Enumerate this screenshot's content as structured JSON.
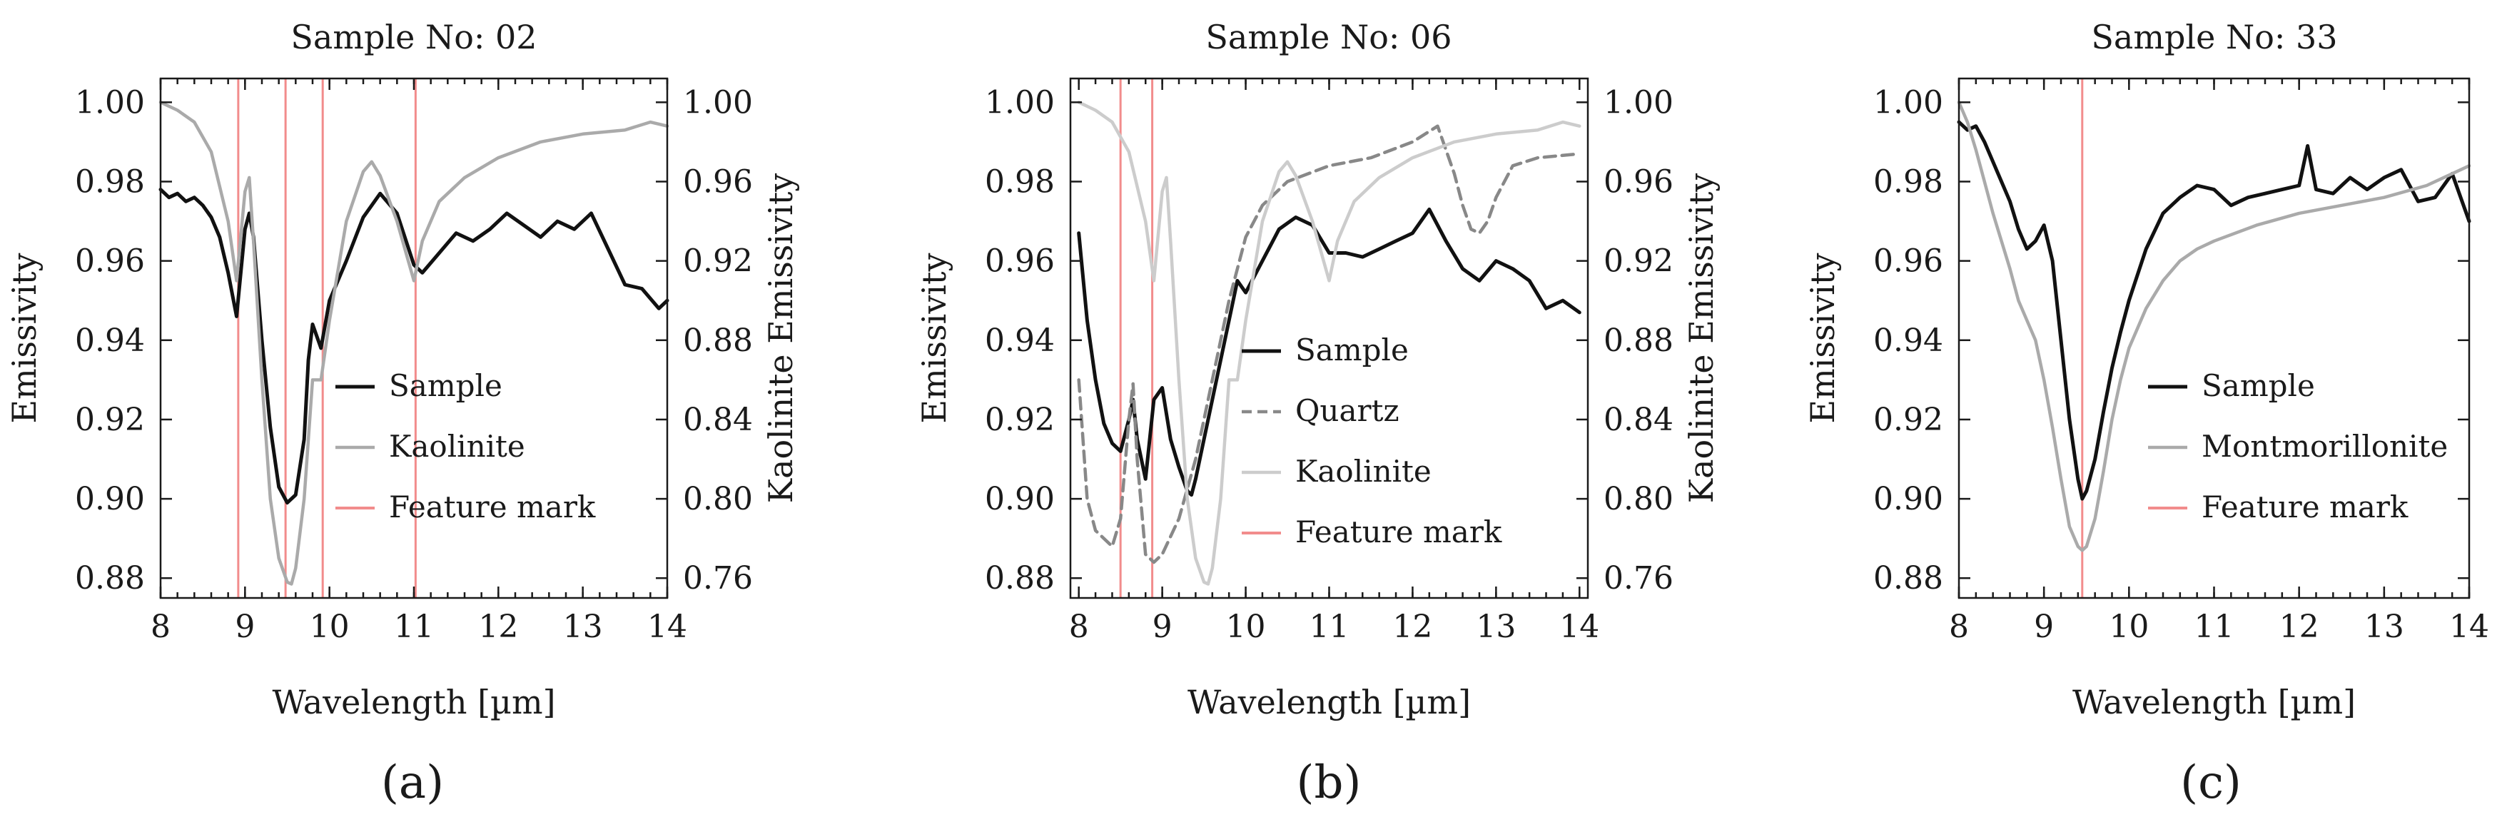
{
  "chart_data": [
    {
      "type": "line",
      "panel_label": "(a)",
      "title": "Sample No: 02",
      "xlabel": "Wavelength [µm]",
      "ylabel": "Emissivity",
      "y2label": "Kaolinite Emissivity",
      "xlim": [
        8,
        14
      ],
      "ylim": [
        0.875,
        1.006
      ],
      "y2lim": [
        0.75,
        1.012
      ],
      "xticks": [
        "8",
        "9",
        "10",
        "11",
        "12",
        "13",
        "14"
      ],
      "yticks": [
        "0.88",
        "0.90",
        "0.92",
        "0.94",
        "0.96",
        "0.98",
        "1.00"
      ],
      "y2ticks": [
        "0.76",
        "0.80",
        "0.84",
        "0.88",
        "0.92",
        "0.96",
        "1.00"
      ],
      "legend_position": "center-right",
      "series": [
        {
          "name": "Sample",
          "color": "#111111",
          "dash": "solid",
          "axis": "left",
          "x": [
            8.0,
            8.1,
            8.2,
            8.3,
            8.4,
            8.5,
            8.6,
            8.7,
            8.8,
            8.9,
            9.0,
            9.05,
            9.1,
            9.2,
            9.3,
            9.4,
            9.5,
            9.6,
            9.7,
            9.75,
            9.8,
            9.9,
            10.0,
            10.2,
            10.4,
            10.6,
            10.8,
            11.0,
            11.1,
            11.3,
            11.5,
            11.7,
            11.9,
            12.1,
            12.3,
            12.5,
            12.7,
            12.9,
            13.1,
            13.3,
            13.5,
            13.7,
            13.9,
            14.0
          ],
          "values": [
            0.978,
            0.976,
            0.977,
            0.975,
            0.976,
            0.974,
            0.971,
            0.966,
            0.957,
            0.946,
            0.968,
            0.972,
            0.966,
            0.94,
            0.918,
            0.903,
            0.899,
            0.901,
            0.915,
            0.935,
            0.944,
            0.938,
            0.95,
            0.96,
            0.971,
            0.977,
            0.972,
            0.959,
            0.957,
            0.962,
            0.967,
            0.965,
            0.968,
            0.972,
            0.969,
            0.966,
            0.97,
            0.968,
            0.972,
            0.963,
            0.954,
            0.953,
            0.948,
            0.95
          ]
        },
        {
          "name": "Kaolinite",
          "color": "#aaaaaa",
          "dash": "solid",
          "axis": "right",
          "x": [
            8.0,
            8.2,
            8.4,
            8.6,
            8.8,
            8.9,
            9.0,
            9.05,
            9.1,
            9.2,
            9.3,
            9.4,
            9.5,
            9.55,
            9.6,
            9.7,
            9.8,
            9.9,
            10.0,
            10.2,
            10.4,
            10.5,
            10.6,
            10.8,
            11.0,
            11.1,
            11.3,
            11.6,
            12.0,
            12.5,
            13.0,
            13.5,
            13.8,
            14.0
          ],
          "values": [
            1.0,
            0.996,
            0.99,
            0.975,
            0.94,
            0.91,
            0.955,
            0.962,
            0.93,
            0.86,
            0.8,
            0.77,
            0.758,
            0.757,
            0.765,
            0.8,
            0.86,
            0.86,
            0.89,
            0.94,
            0.965,
            0.97,
            0.963,
            0.94,
            0.91,
            0.93,
            0.95,
            0.962,
            0.972,
            0.98,
            0.984,
            0.986,
            0.99,
            0.988
          ]
        }
      ],
      "feature_marks": [
        8.92,
        9.48,
        9.92,
        11.02
      ],
      "legend": [
        "Sample",
        "Kaolinite",
        "Feature mark"
      ]
    },
    {
      "type": "line",
      "panel_label": "(b)",
      "title": "Sample No: 06",
      "xlabel": "Wavelength [µm]",
      "ylabel": "Emissivity",
      "y2label": "Kaolinite Emissivity",
      "xlim": [
        7.9,
        14.1
      ],
      "ylim": [
        0.875,
        1.006
      ],
      "y2lim": [
        0.75,
        1.012
      ],
      "xticks": [
        "8",
        "9",
        "10",
        "11",
        "12",
        "13",
        "14"
      ],
      "yticks": [
        "0.88",
        "0.90",
        "0.92",
        "0.94",
        "0.96",
        "0.98",
        "1.00"
      ],
      "y2ticks": [
        "0.76",
        "0.80",
        "0.84",
        "0.88",
        "0.92",
        "0.96",
        "1.00"
      ],
      "legend_position": "lower-right",
      "series": [
        {
          "name": "Sample",
          "color": "#111111",
          "dash": "solid",
          "axis": "left",
          "x": [
            8.0,
            8.1,
            8.2,
            8.3,
            8.4,
            8.5,
            8.6,
            8.65,
            8.7,
            8.8,
            8.9,
            9.0,
            9.1,
            9.2,
            9.3,
            9.35,
            9.4,
            9.5,
            9.6,
            9.7,
            9.8,
            9.9,
            10.0,
            10.2,
            10.4,
            10.6,
            10.8,
            11.0,
            11.2,
            11.4,
            11.6,
            11.8,
            12.0,
            12.2,
            12.4,
            12.6,
            12.8,
            13.0,
            13.2,
            13.4,
            13.6,
            13.8,
            14.0
          ],
          "values": [
            0.967,
            0.945,
            0.93,
            0.919,
            0.914,
            0.912,
            0.92,
            0.925,
            0.915,
            0.905,
            0.925,
            0.928,
            0.915,
            0.908,
            0.902,
            0.901,
            0.905,
            0.915,
            0.925,
            0.935,
            0.945,
            0.955,
            0.952,
            0.96,
            0.968,
            0.971,
            0.969,
            0.962,
            0.962,
            0.961,
            0.963,
            0.965,
            0.967,
            0.973,
            0.965,
            0.958,
            0.955,
            0.96,
            0.958,
            0.955,
            0.948,
            0.95,
            0.947
          ]
        },
        {
          "name": "Quartz",
          "color": "#888888",
          "dash": "dashed",
          "axis": "left",
          "x": [
            8.0,
            8.1,
            8.2,
            8.3,
            8.4,
            8.5,
            8.6,
            8.65,
            8.7,
            8.8,
            8.9,
            9.0,
            9.2,
            9.4,
            9.6,
            9.8,
            10.0,
            10.2,
            10.5,
            11.0,
            11.5,
            12.0,
            12.3,
            12.5,
            12.6,
            12.7,
            12.8,
            12.9,
            13.0,
            13.2,
            13.5,
            14.0
          ],
          "values": [
            0.93,
            0.9,
            0.892,
            0.89,
            0.888,
            0.895,
            0.92,
            0.929,
            0.91,
            0.886,
            0.884,
            0.886,
            0.895,
            0.91,
            0.93,
            0.95,
            0.966,
            0.974,
            0.98,
            0.984,
            0.986,
            0.99,
            0.994,
            0.982,
            0.974,
            0.968,
            0.967,
            0.97,
            0.976,
            0.984,
            0.986,
            0.987
          ]
        },
        {
          "name": "Kaolinite",
          "color": "#cccccc",
          "dash": "solid",
          "axis": "right",
          "x": [
            8.0,
            8.2,
            8.4,
            8.6,
            8.8,
            8.9,
            9.0,
            9.05,
            9.1,
            9.2,
            9.3,
            9.4,
            9.5,
            9.55,
            9.6,
            9.7,
            9.8,
            9.9,
            10.0,
            10.2,
            10.4,
            10.5,
            10.6,
            10.8,
            11.0,
            11.1,
            11.3,
            11.6,
            12.0,
            12.5,
            13.0,
            13.5,
            13.8,
            14.0
          ],
          "values": [
            1.0,
            0.996,
            0.99,
            0.975,
            0.94,
            0.91,
            0.955,
            0.962,
            0.93,
            0.86,
            0.8,
            0.77,
            0.758,
            0.757,
            0.765,
            0.8,
            0.86,
            0.86,
            0.89,
            0.94,
            0.965,
            0.97,
            0.963,
            0.94,
            0.91,
            0.93,
            0.95,
            0.962,
            0.972,
            0.98,
            0.984,
            0.986,
            0.99,
            0.988
          ]
        }
      ],
      "feature_marks": [
        8.5,
        8.88
      ],
      "legend": [
        "Sample",
        "Quartz",
        "Kaolinite",
        "Feature mark"
      ]
    },
    {
      "type": "line",
      "panel_label": "(c)",
      "title": "Sample No: 33",
      "xlabel": "Wavelength [µm]",
      "ylabel": "Emissivity",
      "xlim": [
        8,
        14
      ],
      "ylim": [
        0.875,
        1.006
      ],
      "xticks": [
        "8",
        "9",
        "10",
        "11",
        "12",
        "13",
        "14"
      ],
      "yticks": [
        "0.88",
        "0.90",
        "0.92",
        "0.94",
        "0.96",
        "0.98",
        "1.00"
      ],
      "legend_position": "center-right",
      "series": [
        {
          "name": "Sample",
          "color": "#111111",
          "dash": "solid",
          "axis": "left",
          "x": [
            8.0,
            8.1,
            8.2,
            8.3,
            8.4,
            8.5,
            8.6,
            8.7,
            8.8,
            8.9,
            9.0,
            9.1,
            9.2,
            9.3,
            9.4,
            9.45,
            9.5,
            9.6,
            9.7,
            9.8,
            9.9,
            10.0,
            10.2,
            10.4,
            10.6,
            10.8,
            11.0,
            11.2,
            11.4,
            11.6,
            11.8,
            12.0,
            12.1,
            12.2,
            12.4,
            12.6,
            12.8,
            13.0,
            13.2,
            13.4,
            13.6,
            13.8,
            14.0
          ],
          "values": [
            0.995,
            0.993,
            0.994,
            0.99,
            0.985,
            0.98,
            0.975,
            0.968,
            0.963,
            0.965,
            0.969,
            0.96,
            0.94,
            0.92,
            0.905,
            0.9,
            0.902,
            0.91,
            0.922,
            0.933,
            0.942,
            0.95,
            0.963,
            0.972,
            0.976,
            0.979,
            0.978,
            0.974,
            0.976,
            0.977,
            0.978,
            0.979,
            0.989,
            0.978,
            0.977,
            0.981,
            0.978,
            0.981,
            0.983,
            0.975,
            0.976,
            0.982,
            0.97
          ]
        },
        {
          "name": "Montmorillonite",
          "color": "#aaaaaa",
          "dash": "solid",
          "axis": "left",
          "x": [
            8.0,
            8.1,
            8.2,
            8.3,
            8.4,
            8.5,
            8.6,
            8.7,
            8.8,
            8.9,
            9.0,
            9.1,
            9.2,
            9.3,
            9.4,
            9.45,
            9.5,
            9.6,
            9.7,
            9.8,
            9.9,
            10.0,
            10.2,
            10.4,
            10.6,
            10.8,
            11.0,
            11.5,
            12.0,
            12.5,
            13.0,
            13.5,
            14.0
          ],
          "values": [
            1.0,
            0.995,
            0.988,
            0.98,
            0.972,
            0.965,
            0.958,
            0.95,
            0.945,
            0.94,
            0.93,
            0.918,
            0.905,
            0.893,
            0.888,
            0.887,
            0.888,
            0.895,
            0.907,
            0.92,
            0.93,
            0.938,
            0.948,
            0.955,
            0.96,
            0.963,
            0.965,
            0.969,
            0.972,
            0.974,
            0.976,
            0.979,
            0.984
          ]
        }
      ],
      "feature_marks": [
        9.45
      ],
      "legend": [
        "Sample",
        "Montmorillonite",
        "Feature mark"
      ]
    }
  ],
  "colors": {
    "feature_mark": "#f28c8c",
    "axis": "#1a1a1a"
  }
}
